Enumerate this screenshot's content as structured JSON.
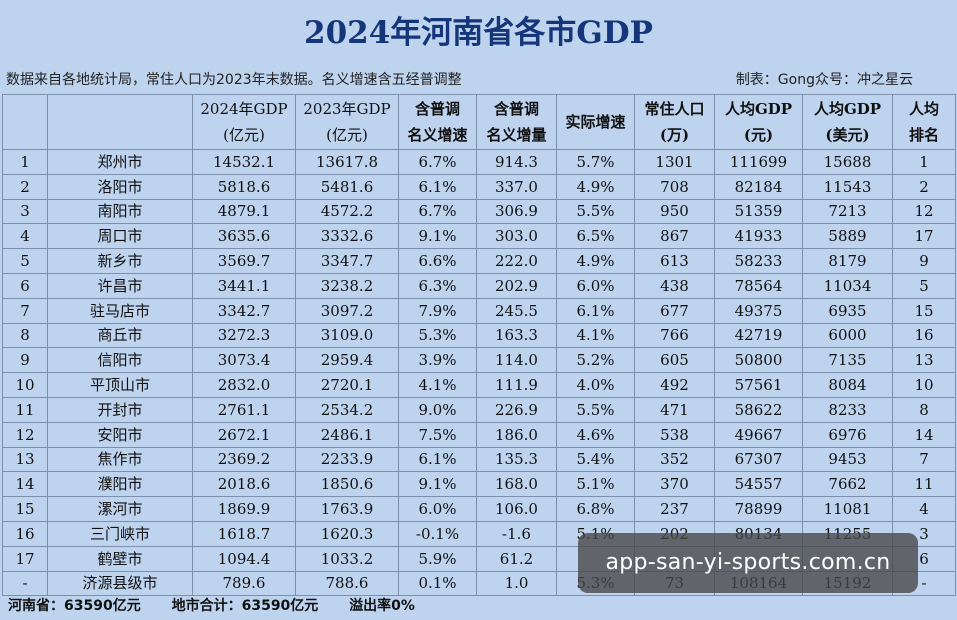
{
  "title": "2024年河南省各市GDP",
  "note_left": "数据来自各地统计局，常住人口为2023年末数据。名义增速含五经普调整",
  "note_right": "制表：Gong众号：冲之星云",
  "headers": [
    "",
    "",
    "2024年GDP\n(亿元)",
    "2023年GDP\n(亿元)",
    "含普调\n名义增速",
    "含普调\n名义增量",
    "实际增速",
    "常住人口\n(万)",
    "人均GDP\n(元)",
    "人均GDP\n(美元)",
    "人均\n排名"
  ],
  "rows": [
    [
      "1",
      "郑州市",
      "14532.1",
      "13617.8",
      "6.7%",
      "914.3",
      "5.7%",
      "1301",
      "111699",
      "15688",
      "1"
    ],
    [
      "2",
      "洛阳市",
      "5818.6",
      "5481.6",
      "6.1%",
      "337.0",
      "4.9%",
      "708",
      "82184",
      "11543",
      "2"
    ],
    [
      "3",
      "南阳市",
      "4879.1",
      "4572.2",
      "6.7%",
      "306.9",
      "5.5%",
      "950",
      "51359",
      "7213",
      "12"
    ],
    [
      "4",
      "周口市",
      "3635.6",
      "3332.6",
      "9.1%",
      "303.0",
      "6.5%",
      "867",
      "41933",
      "5889",
      "17"
    ],
    [
      "5",
      "新乡市",
      "3569.7",
      "3347.7",
      "6.6%",
      "222.0",
      "4.9%",
      "613",
      "58233",
      "8179",
      "9"
    ],
    [
      "6",
      "许昌市",
      "3441.1",
      "3238.2",
      "6.3%",
      "202.9",
      "6.0%",
      "438",
      "78564",
      "11034",
      "5"
    ],
    [
      "7",
      "驻马店市",
      "3342.7",
      "3097.2",
      "7.9%",
      "245.5",
      "6.1%",
      "677",
      "49375",
      "6935",
      "15"
    ],
    [
      "8",
      "商丘市",
      "3272.3",
      "3109.0",
      "5.3%",
      "163.3",
      "4.1%",
      "766",
      "42719",
      "6000",
      "16"
    ],
    [
      "9",
      "信阳市",
      "3073.4",
      "2959.4",
      "3.9%",
      "114.0",
      "5.2%",
      "605",
      "50800",
      "7135",
      "13"
    ],
    [
      "10",
      "平顶山市",
      "2832.0",
      "2720.1",
      "4.1%",
      "111.9",
      "4.0%",
      "492",
      "57561",
      "8084",
      "10"
    ],
    [
      "11",
      "开封市",
      "2761.1",
      "2534.2",
      "9.0%",
      "226.9",
      "5.5%",
      "471",
      "58622",
      "8233",
      "8"
    ],
    [
      "12",
      "安阳市",
      "2672.1",
      "2486.1",
      "7.5%",
      "186.0",
      "4.6%",
      "538",
      "49667",
      "6976",
      "14"
    ],
    [
      "13",
      "焦作市",
      "2369.2",
      "2233.9",
      "6.1%",
      "135.3",
      "5.4%",
      "352",
      "67307",
      "9453",
      "7"
    ],
    [
      "14",
      "濮阳市",
      "2018.6",
      "1850.6",
      "9.1%",
      "168.0",
      "5.1%",
      "370",
      "54557",
      "7662",
      "11"
    ],
    [
      "15",
      "漯河市",
      "1869.9",
      "1763.9",
      "6.0%",
      "106.0",
      "6.8%",
      "237",
      "78899",
      "11081",
      "4"
    ],
    [
      "16",
      "三门峡市",
      "1618.7",
      "1620.3",
      "-0.1%",
      "-1.6",
      "5.1%",
      "202",
      "80134",
      "11255",
      "3"
    ],
    [
      "17",
      "鹤壁市",
      "1094.4",
      "1033.2",
      "5.9%",
      "61.2",
      "",
      "",
      "",
      "",
      "6"
    ],
    [
      "-",
      "济源县级市",
      "789.6",
      "788.6",
      "0.1%",
      "1.0",
      "5.3%",
      "73",
      "108164",
      "15192",
      "-"
    ]
  ],
  "footer": [
    "河南省：63590亿元",
    "地市合计：63590亿元",
    "溢出率0%"
  ],
  "watermark": "app-san-yi-sports.com.cn"
}
